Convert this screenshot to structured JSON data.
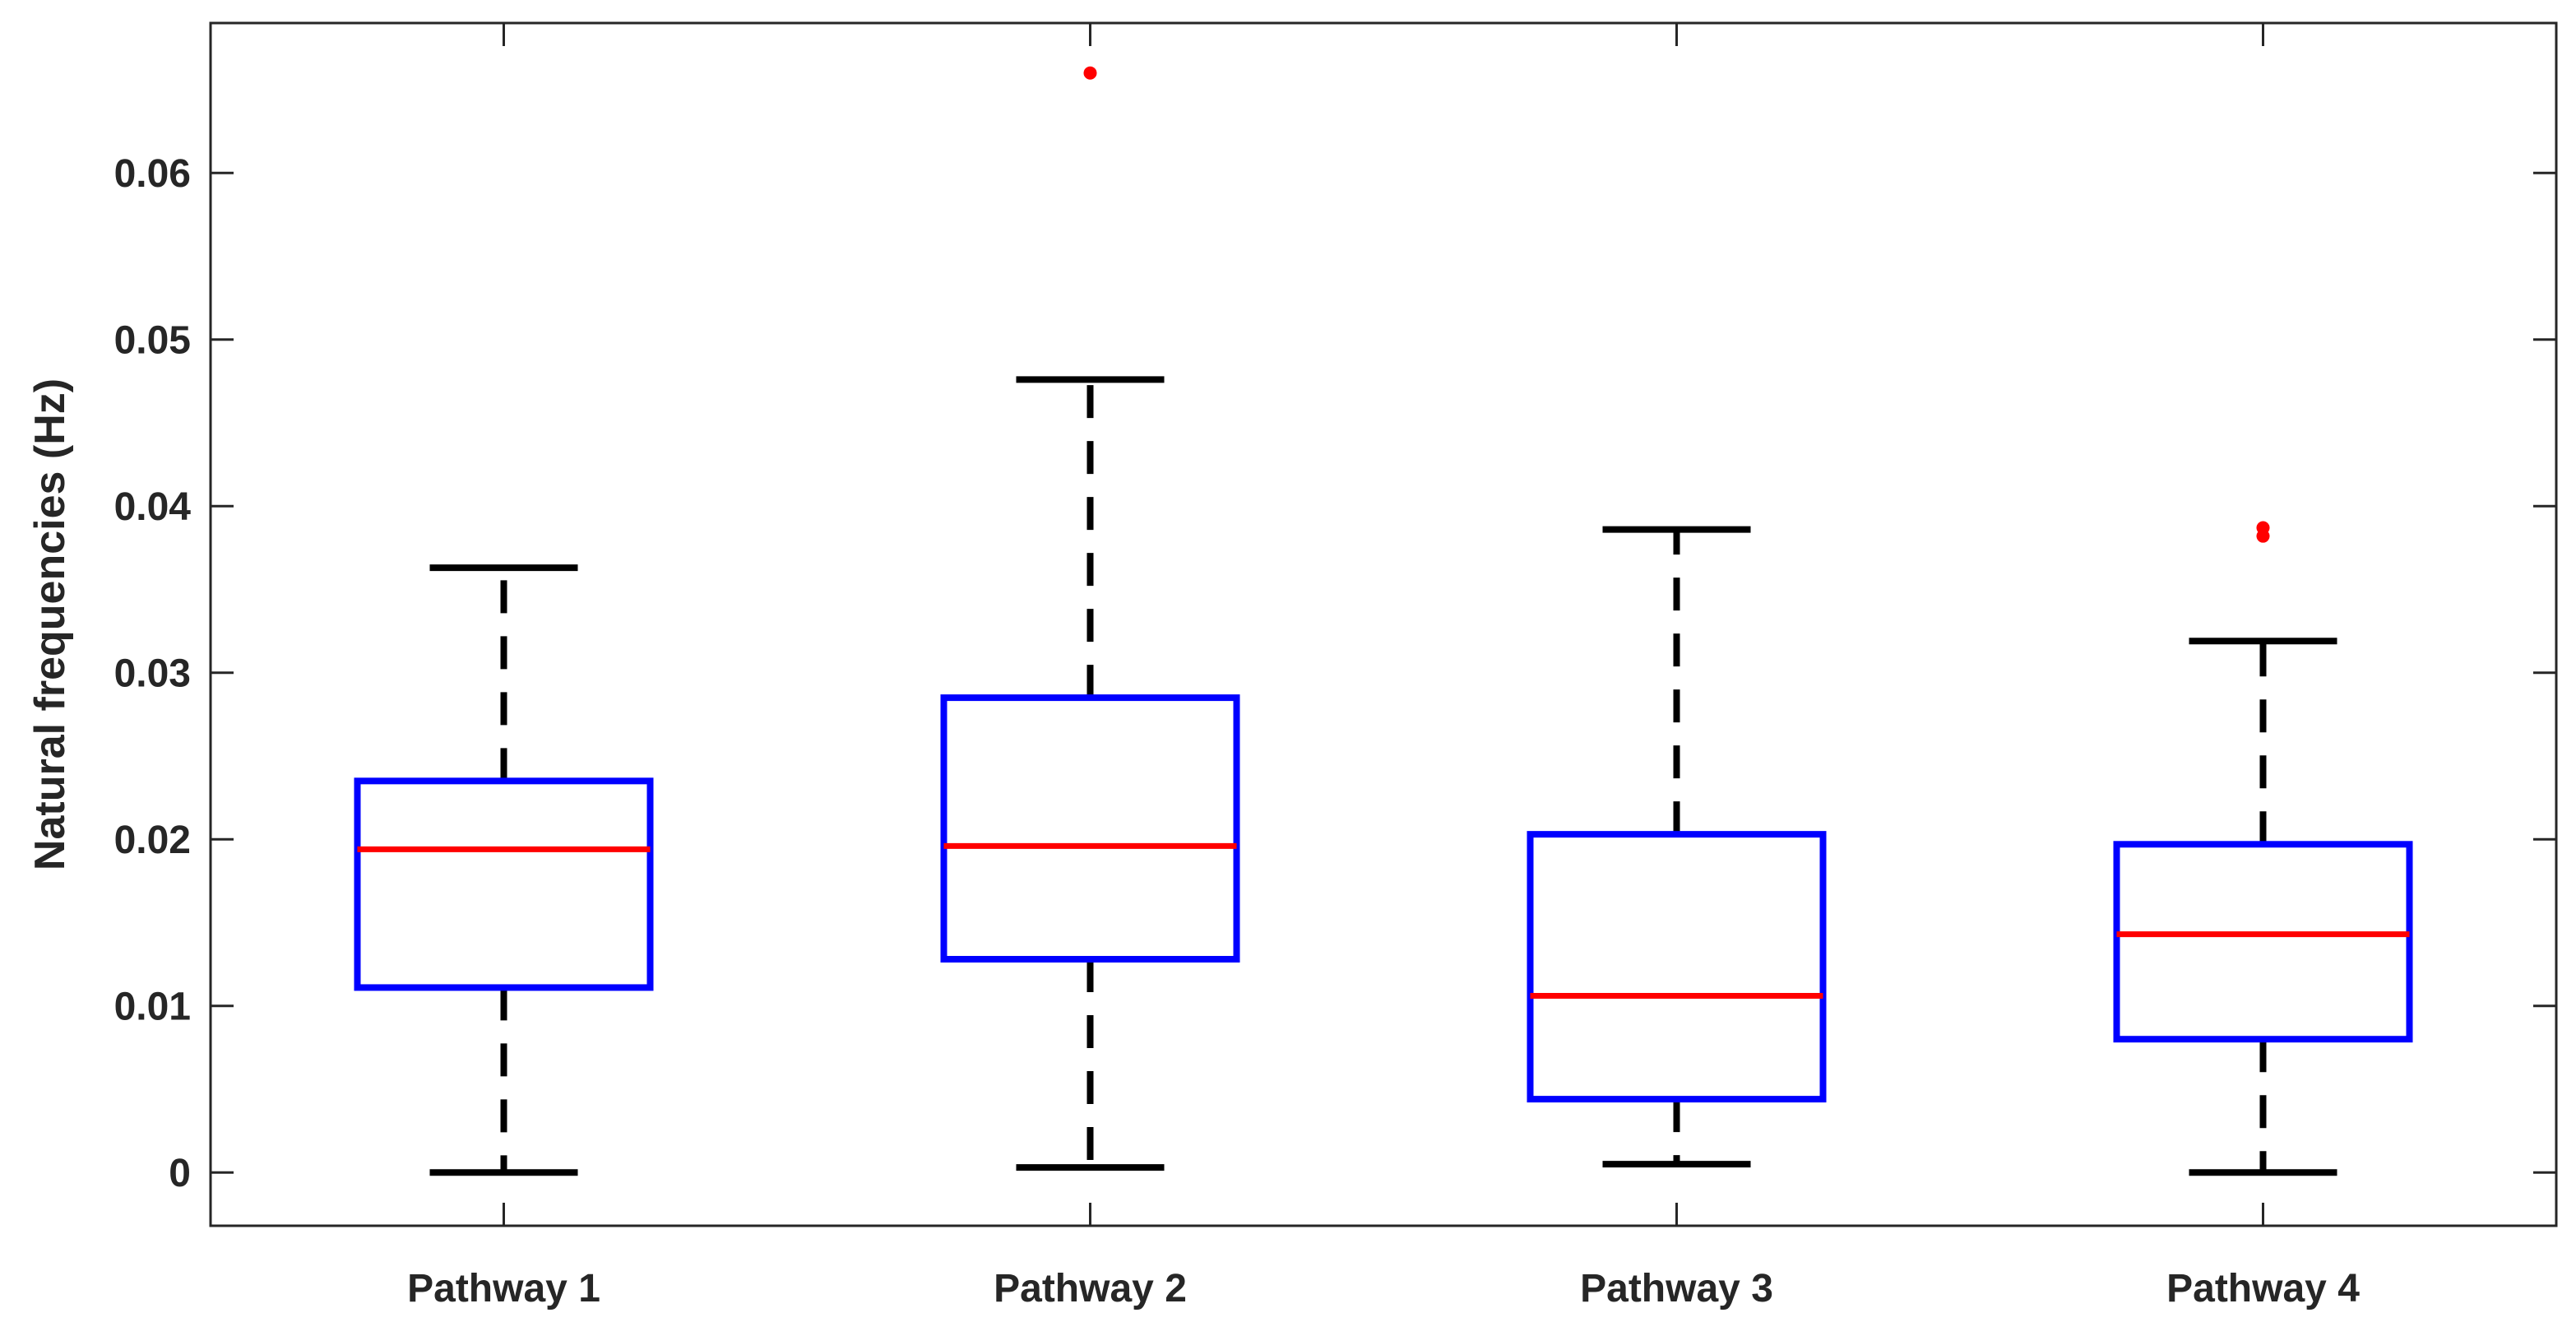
{
  "chart_data": {
    "type": "box",
    "title": "",
    "xlabel": "",
    "ylabel": "Natural frequencies (Hz)",
    "ylim": [
      -0.0032,
      0.069
    ],
    "yticks": [
      0,
      0.01,
      0.02,
      0.03,
      0.04,
      0.05,
      0.06
    ],
    "ytick_labels": [
      "0",
      "0.01",
      "0.02",
      "0.03",
      "0.04",
      "0.05",
      "0.06"
    ],
    "grid": false,
    "categories": [
      "Pathway 1",
      "Pathway 2",
      "Pathway 3",
      "Pathway 4"
    ],
    "boxes": [
      {
        "label": "Pathway 1",
        "whisker_low": 0.0,
        "q1": 0.0111,
        "median": 0.0194,
        "q3": 0.0235,
        "whisker_high": 0.0363,
        "outliers": []
      },
      {
        "label": "Pathway 2",
        "whisker_low": 0.0003,
        "q1": 0.0128,
        "median": 0.0196,
        "q3": 0.0285,
        "whisker_high": 0.0476,
        "outliers": [
          0.066
        ]
      },
      {
        "label": "Pathway 3",
        "whisker_low": 0.0005,
        "q1": 0.0044,
        "median": 0.0106,
        "q3": 0.0203,
        "whisker_high": 0.0386,
        "outliers": []
      },
      {
        "label": "Pathway 4",
        "whisker_low": 0.0,
        "q1": 0.008,
        "median": 0.0143,
        "q3": 0.0197,
        "whisker_high": 0.0319,
        "outliers": [
          0.0382,
          0.0387
        ]
      }
    ],
    "colors": {
      "box": "#0000ff",
      "median": "#ff0000",
      "whisker": "#000000",
      "outlier": "#ff0000",
      "axis": "#262626"
    }
  }
}
